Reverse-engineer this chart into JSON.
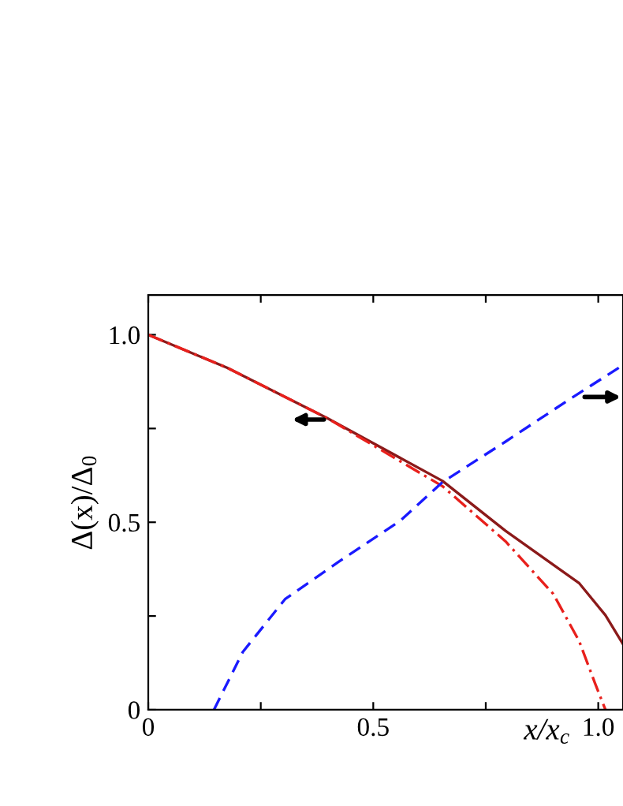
{
  "chart_data": {
    "type": "line",
    "xlabel": "x/x$_{c}$",
    "ylabel": "Δ(x)/Δ$_{0}$",
    "xlim": [
      0,
      1.055
    ],
    "ylim": [
      0,
      1.106
    ],
    "xticks": [
      0,
      {
        "value": 0.25,
        "label": null
      },
      0.5,
      {
        "value": 0.75,
        "label": null
      },
      {
        "value": 1,
        "label": "1.0"
      }
    ],
    "yticks": [
      0,
      {
        "value": 0.25,
        "label": null
      },
      0.5,
      {
        "value": 0.75,
        "label": null
      },
      {
        "value": 1,
        "label": "1.0"
      }
    ],
    "grid": false,
    "legend": false,
    "marker": "none",
    "series": [
      {
        "color": "#8b1a1a",
        "line_style": "solid",
        "x": [
          0,
          0.175,
          0.397,
          0.654,
          0.794,
          0.958,
          1.016,
          1.055
        ],
        "values": [
          1.0,
          0.912,
          0.778,
          0.61,
          0.477,
          0.337,
          0.252,
          0.175
        ]
      },
      {
        "color": "#e8201c",
        "line_style": "dashdot",
        "x": [
          0,
          0.175,
          0.397,
          0.654,
          0.794,
          0.9,
          0.958,
          0.993,
          1.016
        ],
        "values": [
          1.0,
          0.912,
          0.778,
          0.596,
          0.449,
          0.309,
          0.182,
          0.07,
          0
        ]
      },
      {
        "color": "#1a1aff",
        "line_style": "dashed",
        "x": [
          0.146,
          0.21,
          0.304,
          0.421,
          0.561,
          0.654,
          0.794,
          0.935,
          1.055
        ],
        "values": [
          0,
          0.154,
          0.295,
          0.393,
          0.505,
          0.607,
          0.715,
          0.827,
          0.919
        ]
      }
    ]
  }
}
